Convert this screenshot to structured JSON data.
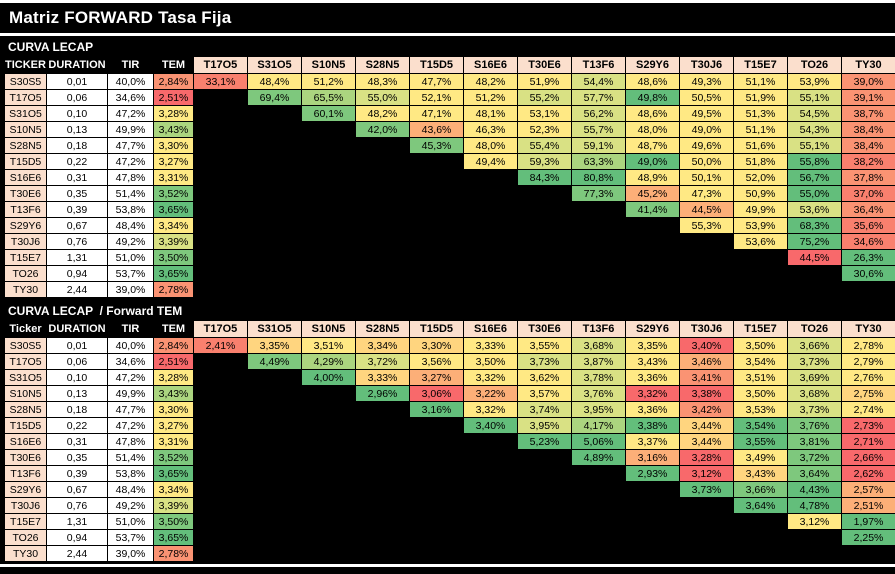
{
  "title": "Matriz FORWARD Tasa Fija",
  "colors": {
    "R": "#F8696B",
    "R2": "#F9806E",
    "S": "#FA9373",
    "O": "#FCAF78",
    "YO": "#FFD57F",
    "Y": "#FFE984",
    "LG": "#D9E184",
    "MG": "#ABD57F",
    "G2": "#7EC87D",
    "G": "#63BE7B",
    "header_peach": "#FBDFCD",
    "cell_white": "#FFFFFF",
    "bar_black": "#000000",
    "text_white": "#FFFFFF",
    "text_black": "#000000"
  },
  "matrix_columns": [
    "T17O5",
    "S31O5",
    "S10N5",
    "S28N5",
    "T15D5",
    "S16E6",
    "T30E6",
    "T13F6",
    "S29Y6",
    "T30J6",
    "T15E7",
    "TO26",
    "TY30"
  ],
  "tables": [
    {
      "section_title": "CURVA LECAP",
      "left_headers": [
        "TICKER",
        "DURATION",
        "TIR",
        "TEM"
      ],
      "rows": [
        {
          "ticker": "S30S5",
          "duration": "0,01",
          "tir": "40,0%",
          "tem": "2,84%",
          "tem_color": "S",
          "values": [
            "33,1%",
            "48,4%",
            "51,2%",
            "48,3%",
            "47,7%",
            "48,2%",
            "51,9%",
            "54,4%",
            "48,6%",
            "49,3%",
            "51,1%",
            "53,9%",
            "39,0%"
          ],
          "colors": [
            "R2",
            "Y",
            "Y",
            "Y",
            "Y",
            "Y",
            "Y",
            "LG",
            "Y",
            "Y",
            "Y",
            "Y",
            "S"
          ]
        },
        {
          "ticker": "T17O5",
          "duration": "0,06",
          "tir": "34,6%",
          "tem": "2,51%",
          "tem_color": "R",
          "values": [
            "69,4%",
            "65,5%",
            "55,0%",
            "52,1%",
            "51,2%",
            "55,2%",
            "57,7%",
            "49,8%",
            "50,5%",
            "51,9%",
            "55,1%",
            "39,1%"
          ],
          "colors": [
            "G2",
            "MG",
            "LG",
            "Y",
            "Y",
            "LG",
            "LG",
            "G",
            "Y",
            "Y",
            "LG",
            "S"
          ]
        },
        {
          "ticker": "S31O5",
          "duration": "0,10",
          "tir": "47,2%",
          "tem": "3,28%",
          "tem_color": "Y",
          "values": [
            "60,1%",
            "48,2%",
            "47,1%",
            "48,1%",
            "53,1%",
            "56,2%",
            "48,6%",
            "49,5%",
            "51,3%",
            "54,5%",
            "38,7%"
          ],
          "colors": [
            "G2",
            "Y",
            "Y",
            "Y",
            "Y",
            "LG",
            "Y",
            "Y",
            "Y",
            "LG",
            "S"
          ]
        },
        {
          "ticker": "S10N5",
          "duration": "0,13",
          "tir": "49,9%",
          "tem": "3,43%",
          "tem_color": "MG",
          "values": [
            "42,0%",
            "43,6%",
            "46,3%",
            "52,3%",
            "55,7%",
            "48,0%",
            "49,0%",
            "51,1%",
            "54,3%",
            "38,4%"
          ],
          "colors": [
            "G2",
            "O",
            "Y",
            "Y",
            "LG",
            "Y",
            "Y",
            "Y",
            "LG",
            "S"
          ]
        },
        {
          "ticker": "S28N5",
          "duration": "0,18",
          "tir": "47,7%",
          "tem": "3,30%",
          "tem_color": "Y",
          "values": [
            "45,3%",
            "48,0%",
            "55,4%",
            "59,1%",
            "48,7%",
            "49,6%",
            "51,6%",
            "55,1%",
            "38,4%"
          ],
          "colors": [
            "G2",
            "Y",
            "LG",
            "LG",
            "Y",
            "Y",
            "Y",
            "LG",
            "S"
          ]
        },
        {
          "ticker": "T15D5",
          "duration": "0,22",
          "tir": "47,2%",
          "tem": "3,27%",
          "tem_color": "Y",
          "values": [
            "49,4%",
            "59,3%",
            "63,3%",
            "49,0%",
            "50,0%",
            "51,8%",
            "55,8%",
            "38,2%"
          ],
          "colors": [
            "Y",
            "LG",
            "MG",
            "G",
            "Y",
            "Y",
            "G",
            "R2"
          ]
        },
        {
          "ticker": "S16E6",
          "duration": "0,31",
          "tir": "47,8%",
          "tem": "3,31%",
          "tem_color": "Y",
          "values": [
            "84,3%",
            "80,8%",
            "48,9%",
            "50,1%",
            "52,0%",
            "56,7%",
            "37,8%"
          ],
          "colors": [
            "G",
            "G",
            "Y",
            "Y",
            "Y",
            "G",
            "S"
          ]
        },
        {
          "ticker": "T30E6",
          "duration": "0,35",
          "tir": "51,4%",
          "tem": "3,52%",
          "tem_color": "G2",
          "values": [
            "77,3%",
            "45,2%",
            "47,3%",
            "50,9%",
            "55,0%",
            "37,0%"
          ],
          "colors": [
            "G2",
            "O",
            "Y",
            "Y",
            "G",
            "R2"
          ]
        },
        {
          "ticker": "T13F6",
          "duration": "0,39",
          "tir": "53,8%",
          "tem": "3,65%",
          "tem_color": "G",
          "values": [
            "41,4%",
            "44,5%",
            "49,9%",
            "53,6%",
            "36,4%"
          ],
          "colors": [
            "G2",
            "O",
            "Y",
            "LG",
            "S"
          ]
        },
        {
          "ticker": "S29Y6",
          "duration": "0,67",
          "tir": "48,4%",
          "tem": "3,34%",
          "tem_color": "Y",
          "values": [
            "55,3%",
            "53,9%",
            "68,3%",
            "35,6%"
          ],
          "colors": [
            "Y",
            "Y",
            "G",
            "R2"
          ]
        },
        {
          "ticker": "T30J6",
          "duration": "0,76",
          "tir": "49,2%",
          "tem": "3,39%",
          "tem_color": "LG",
          "values": [
            "53,6%",
            "75,2%",
            "34,6%"
          ],
          "colors": [
            "Y",
            "G",
            "R2"
          ]
        },
        {
          "ticker": "T15E7",
          "duration": "1,31",
          "tir": "51,0%",
          "tem": "3,50%",
          "tem_color": "G2",
          "values": [
            "44,5%",
            "26,3%"
          ],
          "colors": [
            "R",
            "G"
          ]
        },
        {
          "ticker": "TO26",
          "duration": "0,94",
          "tir": "53,7%",
          "tem": "3,65%",
          "tem_color": "G",
          "values": [
            "30,6%"
          ],
          "colors": [
            "G"
          ]
        },
        {
          "ticker": "TY30",
          "duration": "2,44",
          "tir": "39,0%",
          "tem": "2,78%",
          "tem_color": "S",
          "values": [],
          "colors": []
        }
      ]
    },
    {
      "section_title": "CURVA LECAP  / Forward TEM",
      "left_headers": [
        "Ticker",
        "DURATION",
        "TIR",
        "TEM"
      ],
      "rows": [
        {
          "ticker": "S30S5",
          "duration": "0,01",
          "tir": "40,0%",
          "tem": "2,84%",
          "tem_color": "S",
          "values": [
            "2,41%",
            "3,35%",
            "3,51%",
            "3,34%",
            "3,30%",
            "3,33%",
            "3,55%",
            "3,68%",
            "3,35%",
            "3,40%",
            "3,50%",
            "3,66%",
            "2,78%"
          ],
          "colors": [
            "R2",
            "YO",
            "Y",
            "YO",
            "YO",
            "Y",
            "Y",
            "LG",
            "Y",
            "R",
            "Y",
            "LG",
            "Y"
          ]
        },
        {
          "ticker": "T17O5",
          "duration": "0,06",
          "tir": "34,6%",
          "tem": "2,51%",
          "tem_color": "R",
          "values": [
            "4,49%",
            "4,29%",
            "3,72%",
            "3,56%",
            "3,50%",
            "3,73%",
            "3,87%",
            "3,43%",
            "3,46%",
            "3,54%",
            "3,73%",
            "2,79%"
          ],
          "colors": [
            "G2",
            "MG",
            "LG",
            "Y",
            "Y",
            "LG",
            "LG",
            "Y",
            "O",
            "Y",
            "LG",
            "Y"
          ]
        },
        {
          "ticker": "S31O5",
          "duration": "0,10",
          "tir": "47,2%",
          "tem": "3,28%",
          "tem_color": "Y",
          "values": [
            "4,00%",
            "3,33%",
            "3,27%",
            "3,32%",
            "3,62%",
            "3,78%",
            "3,36%",
            "3,41%",
            "3,51%",
            "3,69%",
            "2,76%"
          ],
          "colors": [
            "G",
            "YO",
            "O",
            "Y",
            "Y",
            "LG",
            "Y",
            "S",
            "Y",
            "LG",
            "Y"
          ]
        },
        {
          "ticker": "S10N5",
          "duration": "0,13",
          "tir": "49,9%",
          "tem": "3,43%",
          "tem_color": "MG",
          "values": [
            "2,96%",
            "3,06%",
            "3,22%",
            "3,57%",
            "3,76%",
            "3,32%",
            "3,38%",
            "3,50%",
            "3,68%",
            "2,75%"
          ],
          "colors": [
            "G",
            "R",
            "O",
            "Y",
            "LG",
            "R",
            "R",
            "Y",
            "LG",
            "YO"
          ]
        },
        {
          "ticker": "S28N5",
          "duration": "0,18",
          "tir": "47,7%",
          "tem": "3,30%",
          "tem_color": "Y",
          "values": [
            "3,16%",
            "3,32%",
            "3,74%",
            "3,95%",
            "3,36%",
            "3,42%",
            "3,53%",
            "3,73%",
            "2,74%"
          ],
          "colors": [
            "G",
            "Y",
            "LG",
            "LG",
            "Y",
            "S",
            "Y",
            "LG",
            "Y"
          ]
        },
        {
          "ticker": "T15D5",
          "duration": "0,22",
          "tir": "47,2%",
          "tem": "3,27%",
          "tem_color": "Y",
          "values": [
            "3,40%",
            "3,95%",
            "4,17%",
            "3,38%",
            "3,44%",
            "3,54%",
            "3,76%",
            "2,73%"
          ],
          "colors": [
            "G",
            "LG",
            "MG",
            "G",
            "YO",
            "G",
            "G2",
            "R"
          ]
        },
        {
          "ticker": "S16E6",
          "duration": "0,31",
          "tir": "47,8%",
          "tem": "3,31%",
          "tem_color": "Y",
          "values": [
            "5,23%",
            "5,06%",
            "3,37%",
            "3,44%",
            "3,55%",
            "3,81%",
            "2,71%"
          ],
          "colors": [
            "G",
            "G",
            "Y",
            "YO",
            "G",
            "G2",
            "R"
          ]
        },
        {
          "ticker": "T30E6",
          "duration": "0,35",
          "tir": "51,4%",
          "tem": "3,52%",
          "tem_color": "G2",
          "values": [
            "4,89%",
            "3,16%",
            "3,28%",
            "3,49%",
            "3,72%",
            "2,66%"
          ],
          "colors": [
            "G",
            "O",
            "R",
            "Y",
            "G2",
            "R"
          ]
        },
        {
          "ticker": "T13F6",
          "duration": "0,39",
          "tir": "53,8%",
          "tem": "3,65%",
          "tem_color": "G",
          "values": [
            "2,93%",
            "3,12%",
            "3,43%",
            "3,64%",
            "2,62%"
          ],
          "colors": [
            "G",
            "R",
            "YO",
            "G2",
            "R"
          ]
        },
        {
          "ticker": "S29Y6",
          "duration": "0,67",
          "tir": "48,4%",
          "tem": "3,34%",
          "tem_color": "Y",
          "values": [
            "3,73%",
            "3,66%",
            "4,43%",
            "2,57%"
          ],
          "colors": [
            "G",
            "G2",
            "G",
            "O"
          ]
        },
        {
          "ticker": "T30J6",
          "duration": "0,76",
          "tir": "49,2%",
          "tem": "3,39%",
          "tem_color": "LG",
          "values": [
            "3,64%",
            "4,78%",
            "2,51%"
          ],
          "colors": [
            "G",
            "G",
            "O"
          ]
        },
        {
          "ticker": "T15E7",
          "duration": "1,31",
          "tir": "51,0%",
          "tem": "3,50%",
          "tem_color": "G2",
          "values": [
            "3,12%",
            "1,97%"
          ],
          "colors": [
            "Y",
            "G"
          ]
        },
        {
          "ticker": "TO26",
          "duration": "0,94",
          "tir": "53,7%",
          "tem": "3,65%",
          "tem_color": "G",
          "values": [
            "2,25%"
          ],
          "colors": [
            "G"
          ]
        },
        {
          "ticker": "TY30",
          "duration": "2,44",
          "tir": "39,0%",
          "tem": "2,78%",
          "tem_color": "S",
          "values": [],
          "colors": []
        }
      ]
    }
  ]
}
